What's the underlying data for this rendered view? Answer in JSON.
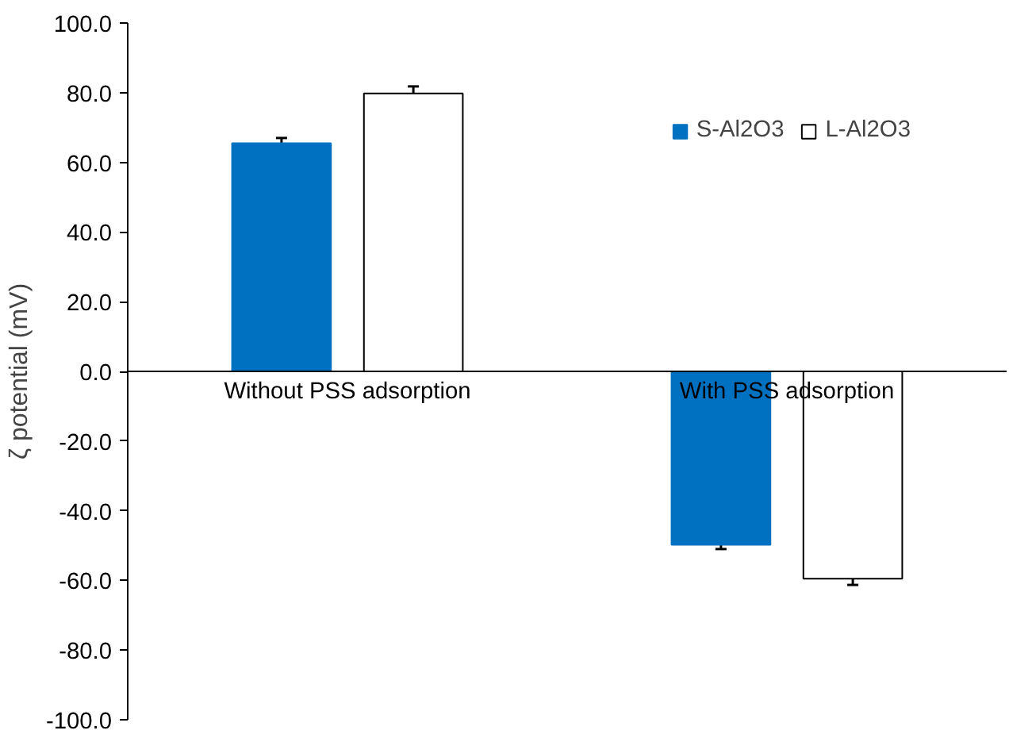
{
  "chart_data": {
    "type": "bar",
    "ylabel": "ζ potential (mV)",
    "categories": [
      "Without PSS adsorption",
      "With PSS adsorption"
    ],
    "series": [
      {
        "name": "S-Al2O3",
        "color": "#0070c0",
        "values": [
          65.5,
          -49.8
        ],
        "errors": [
          1.5,
          1.2
        ]
      },
      {
        "name": "L-Al2O3",
        "color": "#ffffff",
        "values": [
          79.8,
          -59.5
        ],
        "errors": [
          2.0,
          1.8
        ]
      }
    ],
    "ylim": [
      -100,
      100
    ],
    "yticks": [
      {
        "value": -100,
        "label": "-100.0"
      },
      {
        "value": -80,
        "label": "-80.0"
      },
      {
        "value": -60,
        "label": "-60.0"
      },
      {
        "value": -40,
        "label": "-40.0"
      },
      {
        "value": -20,
        "label": "-20.0"
      },
      {
        "value": 0,
        "label": "0.0"
      },
      {
        "value": 20,
        "label": "20.0"
      },
      {
        "value": 40,
        "label": "40.0"
      },
      {
        "value": 60,
        "label": "60.0"
      },
      {
        "value": 80,
        "label": "80.0"
      },
      {
        "value": 100,
        "label": "100.0"
      }
    ],
    "grid": false,
    "legend": "top right"
  }
}
